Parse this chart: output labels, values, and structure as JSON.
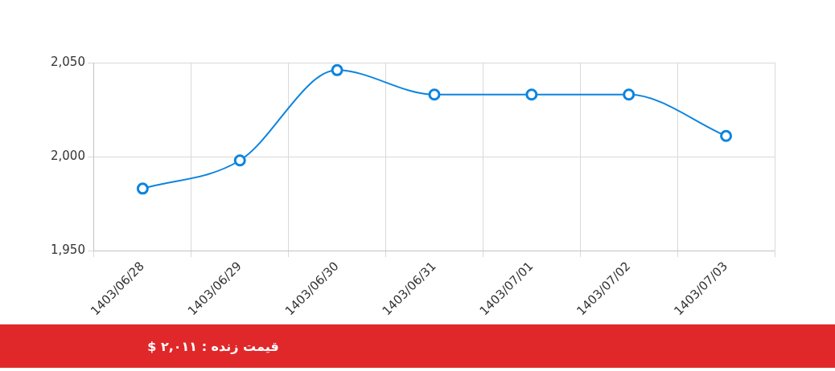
{
  "chart_data": {
    "type": "line",
    "categories": [
      "1403/06/28",
      "1403/06/29",
      "1403/06/30",
      "1403/06/31",
      "1403/07/01",
      "1403/07/02",
      "1403/07/03"
    ],
    "series": [
      {
        "color": "#0b84e0",
        "values": [
          1983,
          1998,
          2046,
          2033,
          2033,
          2033,
          2011
        ]
      }
    ],
    "ylim": [
      1950,
      2050
    ],
    "yticks": [
      {
        "value": 1950,
        "label": "1,950"
      },
      {
        "value": 2000,
        "label": "2,000"
      },
      {
        "value": 2050,
        "label": "2,050"
      }
    ],
    "grid": true,
    "legend": false,
    "marker": "circle",
    "line_style": "solid",
    "annotations": [
      "قیمت زنده : ۲,۰۱۱ $"
    ]
  }
}
